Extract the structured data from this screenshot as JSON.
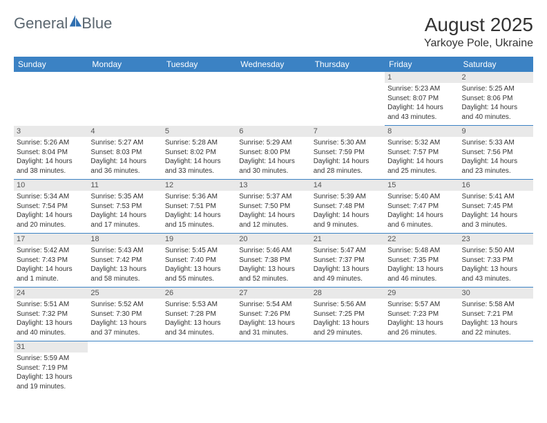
{
  "logo": {
    "textA": "General",
    "textB": "Blue"
  },
  "title": "August 2025",
  "location": "Yarkoye Pole, Ukraine",
  "weekdays": [
    "Sunday",
    "Monday",
    "Tuesday",
    "Wednesday",
    "Thursday",
    "Friday",
    "Saturday"
  ],
  "colors": {
    "header_bg": "#3b82c4",
    "header_text": "#ffffff",
    "day_header_bg": "#e9e9e9",
    "cell_border": "#3b82c4",
    "logo_gray": "#5b6770",
    "logo_blue": "#2f6fb0"
  },
  "grid": [
    [
      {
        "empty": true
      },
      {
        "empty": true
      },
      {
        "empty": true
      },
      {
        "empty": true
      },
      {
        "empty": true
      },
      {
        "day": "1",
        "sunrise": "Sunrise: 5:23 AM",
        "sunset": "Sunset: 8:07 PM",
        "daylight": "Daylight: 14 hours and 43 minutes."
      },
      {
        "day": "2",
        "sunrise": "Sunrise: 5:25 AM",
        "sunset": "Sunset: 8:06 PM",
        "daylight": "Daylight: 14 hours and 40 minutes."
      }
    ],
    [
      {
        "day": "3",
        "sunrise": "Sunrise: 5:26 AM",
        "sunset": "Sunset: 8:04 PM",
        "daylight": "Daylight: 14 hours and 38 minutes."
      },
      {
        "day": "4",
        "sunrise": "Sunrise: 5:27 AM",
        "sunset": "Sunset: 8:03 PM",
        "daylight": "Daylight: 14 hours and 36 minutes."
      },
      {
        "day": "5",
        "sunrise": "Sunrise: 5:28 AM",
        "sunset": "Sunset: 8:02 PM",
        "daylight": "Daylight: 14 hours and 33 minutes."
      },
      {
        "day": "6",
        "sunrise": "Sunrise: 5:29 AM",
        "sunset": "Sunset: 8:00 PM",
        "daylight": "Daylight: 14 hours and 30 minutes."
      },
      {
        "day": "7",
        "sunrise": "Sunrise: 5:30 AM",
        "sunset": "Sunset: 7:59 PM",
        "daylight": "Daylight: 14 hours and 28 minutes."
      },
      {
        "day": "8",
        "sunrise": "Sunrise: 5:32 AM",
        "sunset": "Sunset: 7:57 PM",
        "daylight": "Daylight: 14 hours and 25 minutes."
      },
      {
        "day": "9",
        "sunrise": "Sunrise: 5:33 AM",
        "sunset": "Sunset: 7:56 PM",
        "daylight": "Daylight: 14 hours and 23 minutes."
      }
    ],
    [
      {
        "day": "10",
        "sunrise": "Sunrise: 5:34 AM",
        "sunset": "Sunset: 7:54 PM",
        "daylight": "Daylight: 14 hours and 20 minutes."
      },
      {
        "day": "11",
        "sunrise": "Sunrise: 5:35 AM",
        "sunset": "Sunset: 7:53 PM",
        "daylight": "Daylight: 14 hours and 17 minutes."
      },
      {
        "day": "12",
        "sunrise": "Sunrise: 5:36 AM",
        "sunset": "Sunset: 7:51 PM",
        "daylight": "Daylight: 14 hours and 15 minutes."
      },
      {
        "day": "13",
        "sunrise": "Sunrise: 5:37 AM",
        "sunset": "Sunset: 7:50 PM",
        "daylight": "Daylight: 14 hours and 12 minutes."
      },
      {
        "day": "14",
        "sunrise": "Sunrise: 5:39 AM",
        "sunset": "Sunset: 7:48 PM",
        "daylight": "Daylight: 14 hours and 9 minutes."
      },
      {
        "day": "15",
        "sunrise": "Sunrise: 5:40 AM",
        "sunset": "Sunset: 7:47 PM",
        "daylight": "Daylight: 14 hours and 6 minutes."
      },
      {
        "day": "16",
        "sunrise": "Sunrise: 5:41 AM",
        "sunset": "Sunset: 7:45 PM",
        "daylight": "Daylight: 14 hours and 3 minutes."
      }
    ],
    [
      {
        "day": "17",
        "sunrise": "Sunrise: 5:42 AM",
        "sunset": "Sunset: 7:43 PM",
        "daylight": "Daylight: 14 hours and 1 minute."
      },
      {
        "day": "18",
        "sunrise": "Sunrise: 5:43 AM",
        "sunset": "Sunset: 7:42 PM",
        "daylight": "Daylight: 13 hours and 58 minutes."
      },
      {
        "day": "19",
        "sunrise": "Sunrise: 5:45 AM",
        "sunset": "Sunset: 7:40 PM",
        "daylight": "Daylight: 13 hours and 55 minutes."
      },
      {
        "day": "20",
        "sunrise": "Sunrise: 5:46 AM",
        "sunset": "Sunset: 7:38 PM",
        "daylight": "Daylight: 13 hours and 52 minutes."
      },
      {
        "day": "21",
        "sunrise": "Sunrise: 5:47 AM",
        "sunset": "Sunset: 7:37 PM",
        "daylight": "Daylight: 13 hours and 49 minutes."
      },
      {
        "day": "22",
        "sunrise": "Sunrise: 5:48 AM",
        "sunset": "Sunset: 7:35 PM",
        "daylight": "Daylight: 13 hours and 46 minutes."
      },
      {
        "day": "23",
        "sunrise": "Sunrise: 5:50 AM",
        "sunset": "Sunset: 7:33 PM",
        "daylight": "Daylight: 13 hours and 43 minutes."
      }
    ],
    [
      {
        "day": "24",
        "sunrise": "Sunrise: 5:51 AM",
        "sunset": "Sunset: 7:32 PM",
        "daylight": "Daylight: 13 hours and 40 minutes."
      },
      {
        "day": "25",
        "sunrise": "Sunrise: 5:52 AM",
        "sunset": "Sunset: 7:30 PM",
        "daylight": "Daylight: 13 hours and 37 minutes."
      },
      {
        "day": "26",
        "sunrise": "Sunrise: 5:53 AM",
        "sunset": "Sunset: 7:28 PM",
        "daylight": "Daylight: 13 hours and 34 minutes."
      },
      {
        "day": "27",
        "sunrise": "Sunrise: 5:54 AM",
        "sunset": "Sunset: 7:26 PM",
        "daylight": "Daylight: 13 hours and 31 minutes."
      },
      {
        "day": "28",
        "sunrise": "Sunrise: 5:56 AM",
        "sunset": "Sunset: 7:25 PM",
        "daylight": "Daylight: 13 hours and 29 minutes."
      },
      {
        "day": "29",
        "sunrise": "Sunrise: 5:57 AM",
        "sunset": "Sunset: 7:23 PM",
        "daylight": "Daylight: 13 hours and 26 minutes."
      },
      {
        "day": "30",
        "sunrise": "Sunrise: 5:58 AM",
        "sunset": "Sunset: 7:21 PM",
        "daylight": "Daylight: 13 hours and 22 minutes."
      }
    ],
    [
      {
        "day": "31",
        "sunrise": "Sunrise: 5:59 AM",
        "sunset": "Sunset: 7:19 PM",
        "daylight": "Daylight: 13 hours and 19 minutes."
      },
      {
        "empty": true
      },
      {
        "empty": true
      },
      {
        "empty": true
      },
      {
        "empty": true
      },
      {
        "empty": true
      },
      {
        "empty": true
      }
    ]
  ]
}
